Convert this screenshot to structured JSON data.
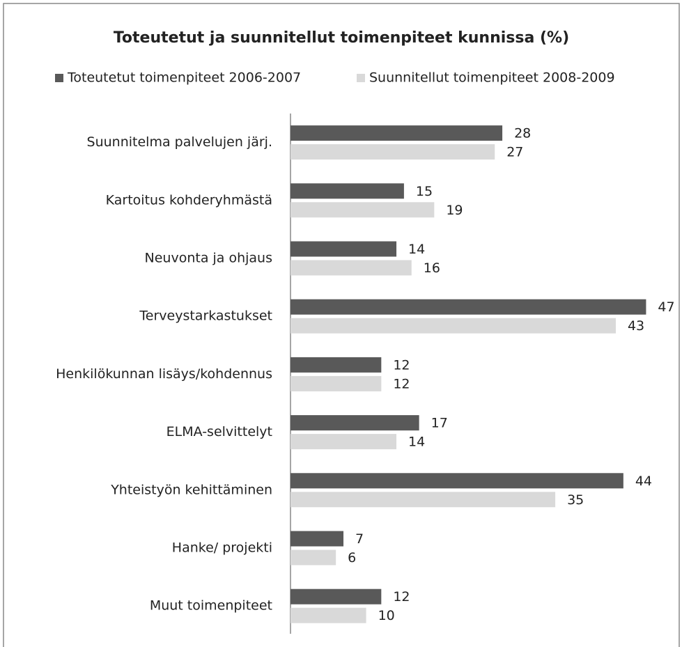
{
  "chart_data": {
    "type": "bar",
    "orientation": "horizontal",
    "title": "Toteutetut  ja suunnitellut toimenpiteet kunnissa (%)",
    "categories": [
      "Suunnitelma palvelujen järj.",
      "Kartoitus kohderyhmästä",
      "Neuvonta ja ohjaus",
      "Terveystarkastukset",
      "Henkilökunnan lisäys/kohdennus",
      "ELMA-selvittelyt",
      "Yhteistyön kehittäminen",
      "Hanke/ projekti",
      "Muut toimenpiteet"
    ],
    "series": [
      {
        "name": "Toteutetut toimenpiteet 2006-2007",
        "color": "#595959",
        "values": [
          28,
          15,
          14,
          47,
          12,
          17,
          44,
          7,
          12
        ]
      },
      {
        "name": "Suunnitellut toimenpiteet 2008-2009",
        "color": "#d9d9d9",
        "values": [
          27,
          19,
          16,
          43,
          12,
          14,
          35,
          6,
          10
        ]
      }
    ],
    "xlim": [
      0,
      50
    ],
    "legend": "top"
  }
}
